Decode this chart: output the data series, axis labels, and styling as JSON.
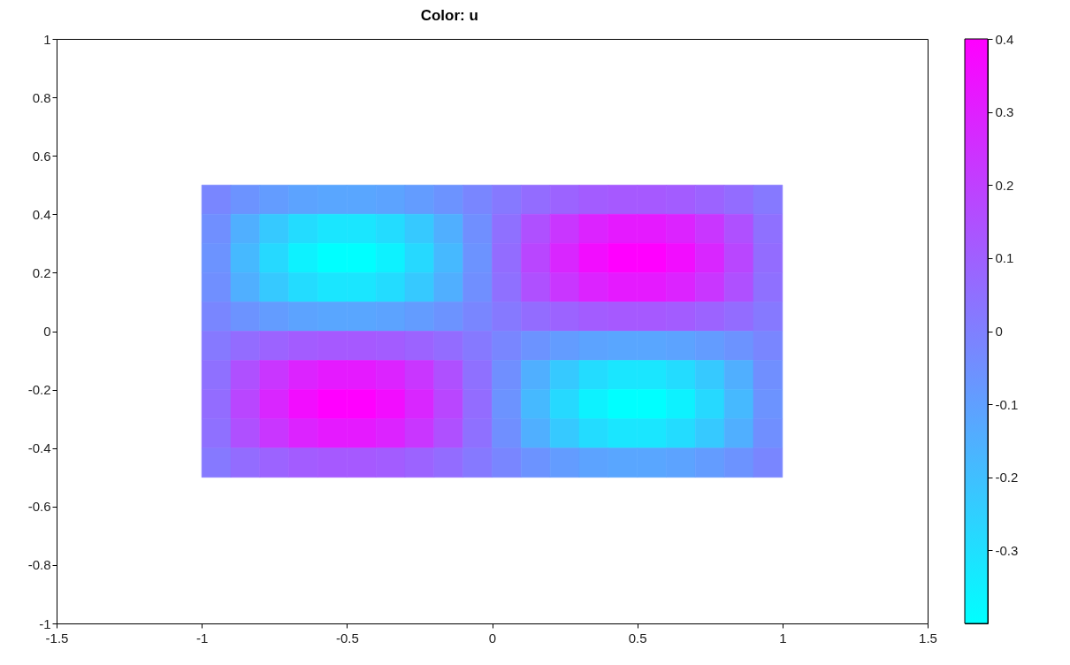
{
  "chart_data": {
    "type": "heatmap",
    "title": "Color: u",
    "x": [
      -0.95,
      -0.85,
      -0.75,
      -0.65,
      -0.55,
      -0.45,
      -0.35,
      -0.25,
      -0.15,
      -0.05,
      0.05,
      0.15,
      0.25,
      0.35,
      0.45,
      0.55,
      0.65,
      0.75,
      0.85,
      0.95
    ],
    "y": [
      0.45,
      0.35,
      0.25,
      0.15,
      0.05,
      -0.05,
      -0.15,
      -0.25,
      -0.35,
      -0.45
    ],
    "cells": [
      [
        -0.02,
        -0.06,
        -0.09,
        -0.11,
        -0.12,
        -0.12,
        -0.11,
        -0.09,
        -0.06,
        -0.02,
        0.02,
        0.06,
        0.09,
        0.11,
        0.12,
        0.12,
        0.11,
        0.09,
        0.06,
        0.02
      ],
      [
        -0.05,
        -0.15,
        -0.23,
        -0.29,
        -0.32,
        -0.32,
        -0.29,
        -0.23,
        -0.15,
        -0.05,
        0.05,
        0.15,
        0.23,
        0.29,
        0.32,
        0.32,
        0.29,
        0.23,
        0.15,
        0.05
      ],
      [
        -0.06,
        -0.18,
        -0.28,
        -0.36,
        -0.4,
        -0.4,
        -0.36,
        -0.28,
        -0.18,
        -0.06,
        0.06,
        0.18,
        0.28,
        0.36,
        0.4,
        0.4,
        0.36,
        0.28,
        0.18,
        0.06
      ],
      [
        -0.05,
        -0.15,
        -0.23,
        -0.29,
        -0.32,
        -0.32,
        -0.29,
        -0.23,
        -0.15,
        -0.05,
        0.05,
        0.15,
        0.23,
        0.29,
        0.32,
        0.32,
        0.29,
        0.23,
        0.15,
        0.05
      ],
      [
        -0.02,
        -0.06,
        -0.09,
        -0.11,
        -0.12,
        -0.12,
        -0.11,
        -0.09,
        -0.06,
        -0.02,
        0.02,
        0.06,
        0.09,
        0.11,
        0.12,
        0.12,
        0.11,
        0.09,
        0.06,
        0.02
      ],
      [
        0.02,
        0.06,
        0.09,
        0.11,
        0.12,
        0.12,
        0.11,
        0.09,
        0.06,
        0.02,
        -0.02,
        -0.06,
        -0.09,
        -0.11,
        -0.12,
        -0.12,
        -0.11,
        -0.09,
        -0.06,
        -0.02
      ],
      [
        0.05,
        0.15,
        0.23,
        0.29,
        0.32,
        0.32,
        0.29,
        0.23,
        0.15,
        0.05,
        -0.05,
        -0.15,
        -0.23,
        -0.29,
        -0.32,
        -0.32,
        -0.29,
        -0.23,
        -0.15,
        -0.05
      ],
      [
        0.06,
        0.18,
        0.28,
        0.36,
        0.4,
        0.4,
        0.36,
        0.28,
        0.18,
        0.06,
        -0.06,
        -0.18,
        -0.28,
        -0.36,
        -0.4,
        -0.4,
        -0.36,
        -0.28,
        -0.18,
        -0.06
      ],
      [
        0.05,
        0.15,
        0.23,
        0.29,
        0.32,
        0.32,
        0.29,
        0.23,
        0.15,
        0.05,
        -0.05,
        -0.15,
        -0.23,
        -0.29,
        -0.32,
        -0.32,
        -0.29,
        -0.23,
        -0.15,
        -0.05
      ],
      [
        0.02,
        0.06,
        0.09,
        0.11,
        0.12,
        0.12,
        0.11,
        0.09,
        0.06,
        0.02,
        -0.02,
        -0.06,
        -0.09,
        -0.11,
        -0.12,
        -0.12,
        -0.11,
        -0.09,
        -0.06,
        -0.02
      ]
    ],
    "colors": [
      "#00ffff",
      "#ff00ff"
    ],
    "clim": [
      -0.4,
      0.4
    ],
    "cticks": [
      -0.3,
      -0.2,
      -0.1,
      0,
      0.1,
      0.2,
      0.3,
      0.4
    ],
    "xlim": [
      -1.5,
      1.5
    ],
    "xticks": [
      -1.5,
      -1,
      -0.5,
      0,
      0.5,
      1,
      1.5
    ],
    "ylim": [
      -1,
      1
    ],
    "yticks": [
      -1,
      -0.8,
      -0.6,
      -0.4,
      -0.2,
      0,
      0.2,
      0.4,
      0.6,
      0.8,
      1
    ]
  }
}
